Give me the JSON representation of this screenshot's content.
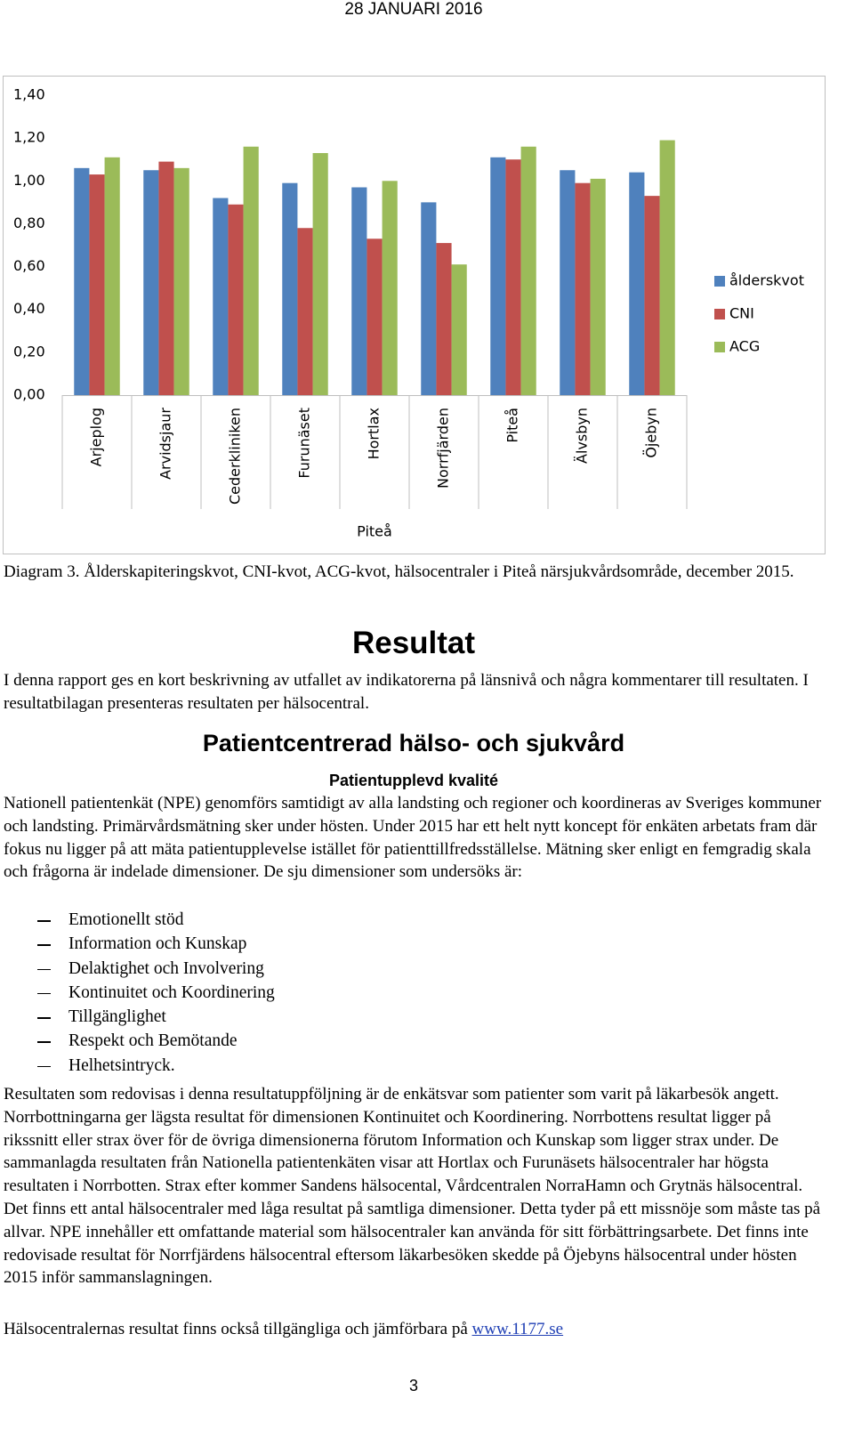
{
  "header": {
    "date": "28 JANUARI 2016"
  },
  "chart_data": {
    "type": "bar",
    "categories": [
      "Arjeplog",
      "Arvidsjaur",
      "Cederkliniken",
      "Furunäset",
      "Hortlax",
      "Norrfjärden",
      "Piteå",
      "Älvsbyn",
      "Öjebyn"
    ],
    "xlabel": "Piteå",
    "series": [
      {
        "name": "ålderskvot",
        "color": "#4f81bd",
        "values": [
          1.06,
          1.05,
          0.92,
          0.99,
          0.97,
          0.9,
          1.11,
          1.05,
          1.04
        ]
      },
      {
        "name": "CNI",
        "color": "#c0504d",
        "values": [
          1.03,
          1.09,
          0.89,
          0.78,
          0.73,
          0.71,
          1.1,
          0.99,
          0.93
        ]
      },
      {
        "name": "ACG",
        "color": "#9bbb59",
        "values": [
          1.11,
          1.06,
          1.16,
          1.13,
          1.0,
          0.61,
          1.16,
          1.01,
          1.19
        ]
      }
    ],
    "ylim": [
      0,
      1.4
    ],
    "yticks": [
      {
        "value": 0,
        "label": "0,00"
      },
      {
        "value": 0.2,
        "label": "0,20"
      },
      {
        "value": 0.4,
        "label": "0,40"
      },
      {
        "value": 0.6,
        "label": "0,60"
      },
      {
        "value": 0.8,
        "label": "0,80"
      },
      {
        "value": 1.0,
        "label": "1,00"
      },
      {
        "value": 1.2,
        "label": "1,20"
      },
      {
        "value": 1.4,
        "label": "1,40"
      }
    ],
    "grid": false,
    "legend": "right"
  },
  "document": {
    "caption": "Diagram 3. Ålderskapiteringskvot, CNI-kvot, ACG-kvot, hälsocentraler i Piteå närsjukvårdsområde, december 2015.",
    "heading": "Resultat",
    "intro": "I denna rapport ges en kort beskrivning av utfallet av indikatorerna på länsnivå och några kommentarer till resultaten. I resultatbilagan presenteras resultaten per hälsocentral.",
    "subheading": "Patientcentrerad hälso- och sjukvård",
    "subsubheading": "Patientupplevd kvalité",
    "paragraph1": "Nationell patientenkät (NPE) genomförs samtidigt av alla landsting och regioner och koordineras av Sveriges kommuner och landsting. Primärvårdsmätning sker under hösten. Under 2015 har ett helt nytt koncept för enkäten arbetats fram där fokus nu ligger på att mäta patientupplevelse istället för patienttillfredsställelse. Mätning sker enligt en femgradig skala och frågorna är indelade dimensioner. De sju dimensioner som undersöks är:",
    "list": [
      "Emotionellt stöd",
      "Information och Kunskap",
      "Delaktighet och Involvering",
      "Kontinuitet och Koordinering",
      "Tillgänglighet",
      "Respekt och Bemötande",
      "Helhetsintryck."
    ],
    "paragraph2": "Resultaten som redovisas i denna resultatuppföljning är de enkätsvar som patienter som varit på läkarbesök angett. Norrbottningarna ger lägsta resultat för dimensionen Kontinuitet och Koordinering. Norrbottens resultat ligger på rikssnitt eller strax över för de övriga dimensionerna förutom Information och Kunskap som ligger strax under. De sammanlagda resultaten från Nationella patientenkäten visar att Hortlax och Furunäsets hälsocentraler har högsta resultaten i Norrbotten. Strax efter kommer Sandens hälsocental, Vårdcentralen NorraHamn och Grytnäs hälsocentral. Det finns ett antal hälsocentraler med låga resultat på samtliga dimensioner. Detta tyder på ett missnöje som måste tas på allvar. NPE innehåller ett omfattande material som hälsocentraler kan använda för sitt förbättringsarbete. Det finns inte redovisade resultat för Norrfjärdens hälsocentral eftersom läkarbesöken skedde på Öjebyns hälsocentral under hösten 2015 inför sammanslagningen.",
    "closing_text": "Hälsocentralernas resultat finns också tillgängliga och jämförbara på",
    "link": "www.1177.se"
  },
  "footer": {
    "page": "3"
  }
}
